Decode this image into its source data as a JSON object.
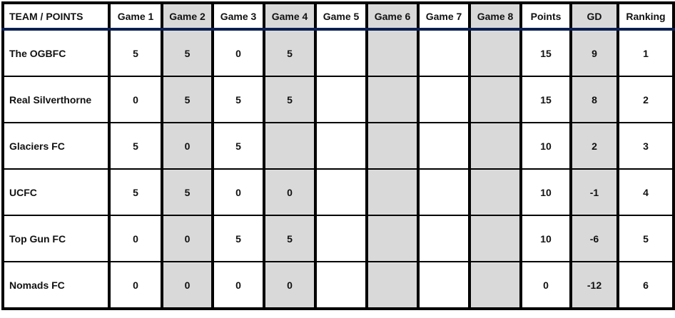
{
  "headers": [
    "TEAM / POINTS",
    "Game 1",
    "Game 2",
    "Game 3",
    "Game 4",
    "Game 5",
    "Game 6",
    "Game 7",
    "Game 8",
    "Points",
    "GD",
    "Ranking"
  ],
  "shaded_columns": [
    "Game 2",
    "Game 4",
    "Game 6",
    "Game 8",
    "GD"
  ],
  "colors": {
    "shade": "#d9d9d9",
    "header_rule": "#0b2052",
    "grid": "#000000"
  },
  "rows": [
    [
      "The OGBFC",
      "5",
      "5",
      "0",
      "5",
      "",
      "",
      "",
      "",
      "15",
      "9",
      "1"
    ],
    [
      "Real Silverthorne",
      "0",
      "5",
      "5",
      "5",
      "",
      "",
      "",
      "",
      "15",
      "8",
      "2"
    ],
    [
      "Glaciers FC",
      "5",
      "0",
      "5",
      "",
      "",
      "",
      "",
      "",
      "10",
      "2",
      "3"
    ],
    [
      "UCFC",
      "5",
      "5",
      "0",
      "0",
      "",
      "",
      "",
      "",
      "10",
      "-1",
      "4"
    ],
    [
      "Top Gun FC",
      "0",
      "0",
      "5",
      "5",
      "",
      "",
      "",
      "",
      "10",
      "-6",
      "5"
    ],
    [
      "Nomads FC",
      "0",
      "0",
      "0",
      "0",
      "",
      "",
      "",
      "",
      "0",
      "-12",
      "6"
    ]
  ]
}
